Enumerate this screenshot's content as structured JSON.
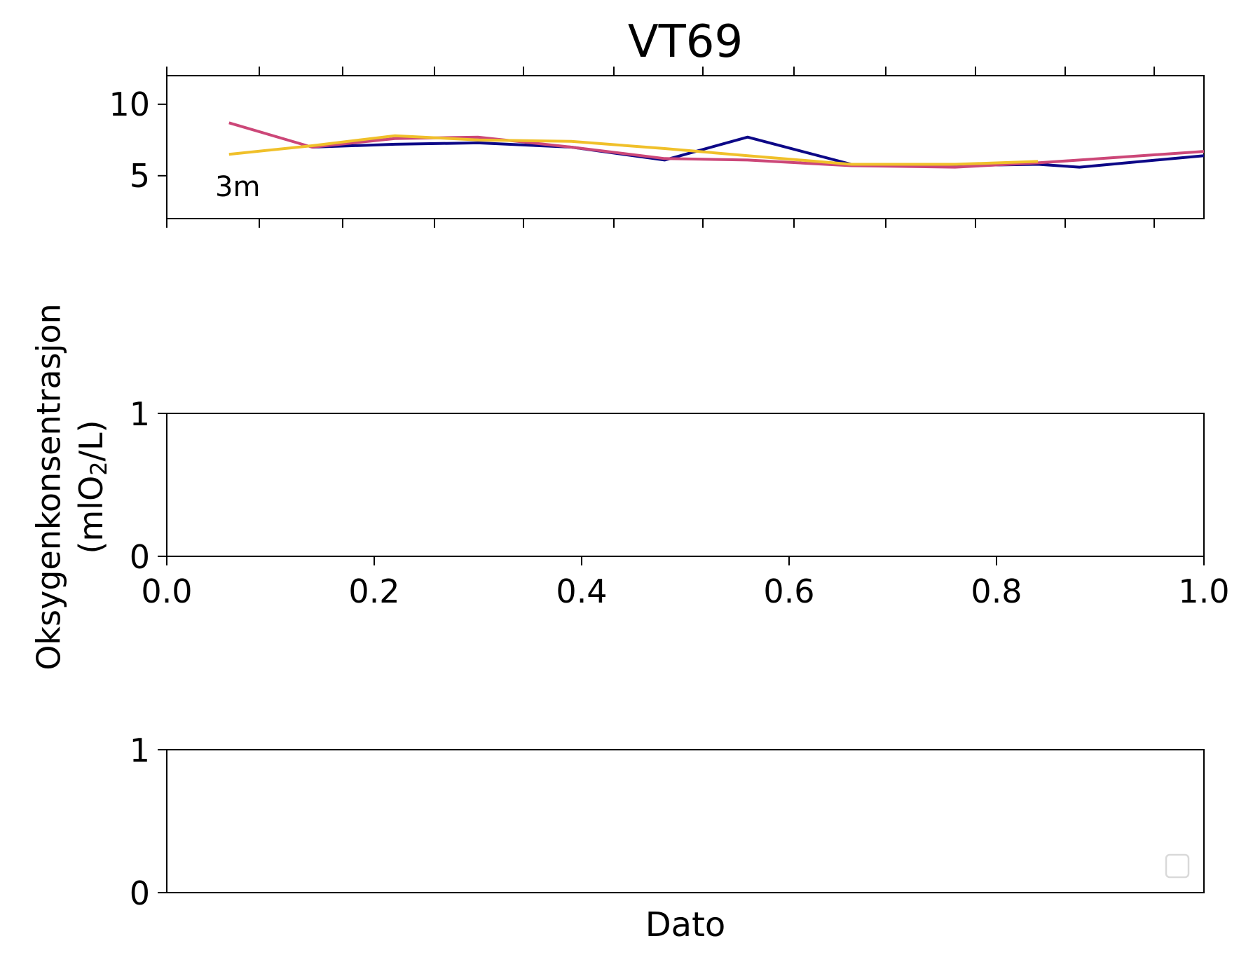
{
  "chart_data": [
    {
      "type": "line",
      "title": "VT69",
      "annotation": "3m",
      "ylim": [
        2,
        12
      ],
      "yticks": [
        "5",
        "10"
      ],
      "ytick_values": [
        5,
        10
      ],
      "xlim": [
        0,
        1
      ],
      "x_ticklabels_shown": false,
      "grid": false,
      "series": [
        {
          "color": "#0d0887",
          "x": [
            0.14,
            0.22,
            0.3,
            0.39,
            0.48,
            0.56,
            0.66,
            0.76,
            0.84,
            0.88,
            1.0
          ],
          "y": [
            7.0,
            7.2,
            7.3,
            7.0,
            6.1,
            7.7,
            5.8,
            5.7,
            5.8,
            5.6,
            6.4
          ]
        },
        {
          "color": "#cc4778",
          "x": [
            0.06,
            0.14,
            0.22,
            0.3,
            0.39,
            0.48,
            0.56,
            0.66,
            0.76,
            0.84,
            0.88,
            1.0
          ],
          "y": [
            8.7,
            7.0,
            7.6,
            7.7,
            7.0,
            6.2,
            6.1,
            5.7,
            5.6,
            5.9,
            6.1,
            6.7
          ]
        },
        {
          "color": "#f0c02a",
          "x": [
            0.06,
            0.14,
            0.22,
            0.3,
            0.39,
            0.48,
            0.56,
            0.66,
            0.76,
            0.84
          ],
          "y": [
            6.5,
            7.1,
            7.8,
            7.5,
            7.4,
            6.9,
            6.4,
            5.8,
            5.8,
            6.0
          ]
        }
      ]
    },
    {
      "type": "line",
      "ylim": [
        0,
        1
      ],
      "yticks": [
        "0",
        "1"
      ],
      "ytick_values": [
        0,
        1
      ],
      "xlim": [
        0,
        1
      ],
      "xticks": [
        "0.0",
        "0.2",
        "0.4",
        "0.6",
        "0.8",
        "1.0"
      ],
      "xtick_values": [
        0,
        0.2,
        0.4,
        0.6,
        0.8,
        1.0
      ],
      "series": []
    },
    {
      "type": "line",
      "ylim": [
        0,
        1
      ],
      "yticks": [
        "0",
        "1"
      ],
      "ytick_values": [
        0,
        1
      ],
      "xlabel": "Dato",
      "legend": "lower-right",
      "series": []
    }
  ],
  "shared_ylabel_line1": "Oksygenkonsentrasjon",
  "shared_ylabel_line2_prefix": "(mlO",
  "shared_ylabel_line2_sub": "2",
  "shared_ylabel_line2_suffix": "/L)"
}
